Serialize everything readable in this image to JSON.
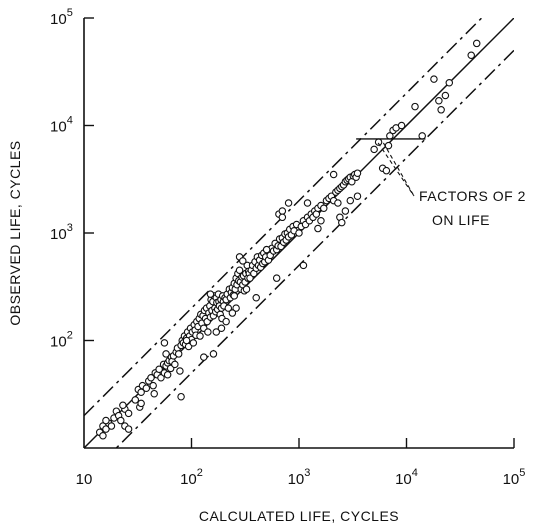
{
  "chart_data": {
    "type": "scatter",
    "title": "",
    "xlabel": "CALCULATED LIFE, CYCLES",
    "ylabel": "OBSERVED LIFE, CYCLES",
    "xscale": "log",
    "yscale": "log",
    "xlim": [
      10,
      100000
    ],
    "ylim": [
      10,
      100000
    ],
    "x_ticks": [
      {
        "value": 10,
        "base": "10",
        "exp": ""
      },
      {
        "value": 100,
        "base": "10",
        "exp": "2"
      },
      {
        "value": 1000,
        "base": "10",
        "exp": "3"
      },
      {
        "value": 10000,
        "base": "10",
        "exp": "4"
      },
      {
        "value": 100000,
        "base": "10",
        "exp": "5"
      }
    ],
    "y_ticks": [
      {
        "value": 100,
        "base": "10",
        "exp": "2"
      },
      {
        "value": 1000,
        "base": "10",
        "exp": "3"
      },
      {
        "value": 10000,
        "base": "10",
        "exp": "4"
      },
      {
        "value": 100000,
        "base": "10",
        "exp": "5"
      }
    ],
    "grid": false,
    "reference_lines": [
      {
        "kind": "solid",
        "ratio": 1
      },
      {
        "kind": "dash-dot",
        "ratio": 2
      },
      {
        "kind": "dash-dot",
        "ratio": 0.5
      }
    ],
    "annotation": {
      "line1": "FACTORS OF 2",
      "line2": "ON LIFE",
      "bracket_y": 7500,
      "bracket_x": [
        3400,
        15000
      ]
    },
    "points": [
      [
        14,
        14
      ],
      [
        15,
        16
      ],
      [
        16,
        15
      ],
      [
        17,
        17
      ],
      [
        18,
        16
      ],
      [
        15,
        13
      ],
      [
        16,
        18
      ],
      [
        19,
        19
      ],
      [
        20,
        22
      ],
      [
        21,
        20
      ],
      [
        22,
        18
      ],
      [
        24,
        23
      ],
      [
        23,
        25
      ],
      [
        26,
        21
      ],
      [
        24,
        16
      ],
      [
        26,
        15
      ],
      [
        30,
        28
      ],
      [
        32,
        35
      ],
      [
        34,
        33
      ],
      [
        35,
        38
      ],
      [
        33,
        24
      ],
      [
        34,
        26
      ],
      [
        38,
        36
      ],
      [
        40,
        42
      ],
      [
        42,
        45
      ],
      [
        44,
        38
      ],
      [
        46,
        50
      ],
      [
        45,
        32
      ],
      [
        48,
        48
      ],
      [
        50,
        54
      ],
      [
        52,
        45
      ],
      [
        55,
        60
      ],
      [
        56,
        50
      ],
      [
        58,
        58
      ],
      [
        60,
        62
      ],
      [
        58,
        75
      ],
      [
        56,
        95
      ],
      [
        60,
        48
      ],
      [
        62,
        65
      ],
      [
        64,
        55
      ],
      [
        65,
        70
      ],
      [
        66,
        64
      ],
      [
        68,
        72
      ],
      [
        70,
        60
      ],
      [
        72,
        78
      ],
      [
        74,
        85
      ],
      [
        76,
        75
      ],
      [
        78,
        52
      ],
      [
        80,
        90
      ],
      [
        82,
        100
      ],
      [
        84,
        95
      ],
      [
        86,
        110
      ],
      [
        88,
        92
      ],
      [
        90,
        105
      ],
      [
        92,
        120
      ],
      [
        94,
        88
      ],
      [
        96,
        110
      ],
      [
        98,
        130
      ],
      [
        100,
        102
      ],
      [
        102,
        120
      ],
      [
        104,
        95
      ],
      [
        106,
        140
      ],
      [
        108,
        125
      ],
      [
        110,
        112
      ],
      [
        112,
        150
      ],
      [
        115,
        135
      ],
      [
        118,
        160
      ],
      [
        120,
        110
      ],
      [
        122,
        175
      ],
      [
        125,
        145
      ],
      [
        128,
        170
      ],
      [
        130,
        130
      ],
      [
        132,
        190
      ],
      [
        135,
        160
      ],
      [
        138,
        200
      ],
      [
        140,
        150
      ],
      [
        142,
        120
      ],
      [
        145,
        180
      ],
      [
        148,
        210
      ],
      [
        150,
        165
      ],
      [
        152,
        240
      ],
      [
        155,
        190
      ],
      [
        158,
        230
      ],
      [
        160,
        170
      ],
      [
        162,
        260
      ],
      [
        165,
        200
      ],
      [
        168,
        185
      ],
      [
        170,
        250
      ],
      [
        172,
        225
      ],
      [
        175,
        195
      ],
      [
        178,
        270
      ],
      [
        180,
        230
      ],
      [
        182,
        210
      ],
      [
        185,
        175
      ],
      [
        188,
        240
      ],
      [
        190,
        200
      ],
      [
        192,
        160
      ],
      [
        195,
        260
      ],
      [
        198,
        230
      ],
      [
        200,
        210
      ],
      [
        205,
        250
      ],
      [
        210,
        240
      ],
      [
        215,
        270
      ],
      [
        220,
        200
      ],
      [
        225,
        300
      ],
      [
        230,
        250
      ],
      [
        235,
        280
      ],
      [
        240,
        310
      ],
      [
        245,
        265
      ],
      [
        250,
        340
      ],
      [
        255,
        300
      ],
      [
        260,
        380
      ],
      [
        265,
        330
      ],
      [
        270,
        420
      ],
      [
        275,
        360
      ],
      [
        280,
        450
      ],
      [
        285,
        350
      ],
      [
        290,
        300
      ],
      [
        295,
        390
      ],
      [
        300,
        330
      ],
      [
        305,
        400
      ],
      [
        310,
        290
      ],
      [
        315,
        350
      ],
      [
        320,
        420
      ],
      [
        325,
        300
      ],
      [
        330,
        500
      ],
      [
        335,
        380
      ],
      [
        340,
        440
      ],
      [
        345,
        420
      ],
      [
        350,
        380
      ],
      [
        360,
        450
      ],
      [
        370,
        500
      ],
      [
        380,
        420
      ],
      [
        390,
        540
      ],
      [
        400,
        470
      ],
      [
        410,
        600
      ],
      [
        420,
        500
      ],
      [
        430,
        560
      ],
      [
        440,
        480
      ],
      [
        450,
        620
      ],
      [
        460,
        520
      ],
      [
        470,
        650
      ],
      [
        480,
        540
      ],
      [
        490,
        600
      ],
      [
        500,
        700
      ],
      [
        520,
        560
      ],
      [
        540,
        620
      ],
      [
        560,
        720
      ],
      [
        580,
        680
      ],
      [
        600,
        800
      ],
      [
        620,
        700
      ],
      [
        640,
        760
      ],
      [
        660,
        880
      ],
      [
        680,
        750
      ],
      [
        700,
        900
      ],
      [
        720,
        820
      ],
      [
        740,
        980
      ],
      [
        760,
        860
      ],
      [
        780,
        1000
      ],
      [
        800,
        920
      ],
      [
        820,
        1080
      ],
      [
        850,
        960
      ],
      [
        880,
        1150
      ],
      [
        900,
        1050
      ],
      [
        950,
        1200
      ],
      [
        1000,
        1000
      ],
      [
        1050,
        1150
      ],
      [
        1100,
        1300
      ],
      [
        1150,
        1200
      ],
      [
        1200,
        1400
      ],
      [
        1250,
        1300
      ],
      [
        1300,
        1500
      ],
      [
        1350,
        1400
      ],
      [
        1400,
        1600
      ],
      [
        1450,
        1500
      ],
      [
        1500,
        1700
      ],
      [
        1600,
        1800
      ],
      [
        1700,
        1700
      ],
      [
        1800,
        2000
      ],
      [
        1900,
        2100
      ],
      [
        2000,
        2200
      ],
      [
        2100,
        2000
      ],
      [
        2200,
        2400
      ],
      [
        2300,
        2500
      ],
      [
        2400,
        2600
      ],
      [
        2500,
        2700
      ],
      [
        2600,
        2800
      ],
      [
        2700,
        3000
      ],
      [
        2800,
        3100
      ],
      [
        2900,
        3200
      ],
      [
        3000,
        3300
      ],
      [
        3100,
        3000
      ],
      [
        3200,
        3400
      ],
      [
        3300,
        3500
      ],
      [
        3400,
        3300
      ],
      [
        3500,
        3600
      ],
      [
        1100,
        500
      ],
      [
        280,
        600
      ],
      [
        300,
        550
      ],
      [
        250,
        260
      ],
      [
        650,
        1500
      ],
      [
        700,
        1600
      ],
      [
        800,
        1900
      ],
      [
        1600,
        1300
      ],
      [
        1500,
        1100
      ],
      [
        2400,
        1400
      ],
      [
        2500,
        1250
      ],
      [
        160,
        75
      ],
      [
        130,
        70
      ],
      [
        80,
        30
      ],
      [
        90,
        100
      ],
      [
        150,
        270
      ],
      [
        170,
        120
      ],
      [
        400,
        250
      ],
      [
        500,
        700
      ],
      [
        620,
        380
      ],
      [
        700,
        1400
      ],
      [
        1200,
        1900
      ],
      [
        2100,
        3500
      ],
      [
        3000,
        2000
      ],
      [
        2300,
        1900
      ],
      [
        2700,
        1600
      ],
      [
        3500,
        2200
      ],
      [
        260,
        200
      ],
      [
        240,
        180
      ],
      [
        210,
        150
      ],
      [
        190,
        130
      ],
      [
        5000,
        6000
      ],
      [
        5500,
        7000
      ],
      [
        6000,
        4000
      ],
      [
        6500,
        3800
      ],
      [
        6800,
        6500
      ],
      [
        7000,
        8000
      ],
      [
        7500,
        9000
      ],
      [
        8000,
        9500
      ],
      [
        9000,
        10000
      ],
      [
        12000,
        15000
      ],
      [
        18000,
        27000
      ],
      [
        20000,
        17000
      ],
      [
        21000,
        14000
      ],
      [
        23000,
        19000
      ],
      [
        25000,
        25000
      ],
      [
        40000,
        45000
      ],
      [
        45000,
        58000
      ],
      [
        14000,
        8000
      ]
    ]
  }
}
